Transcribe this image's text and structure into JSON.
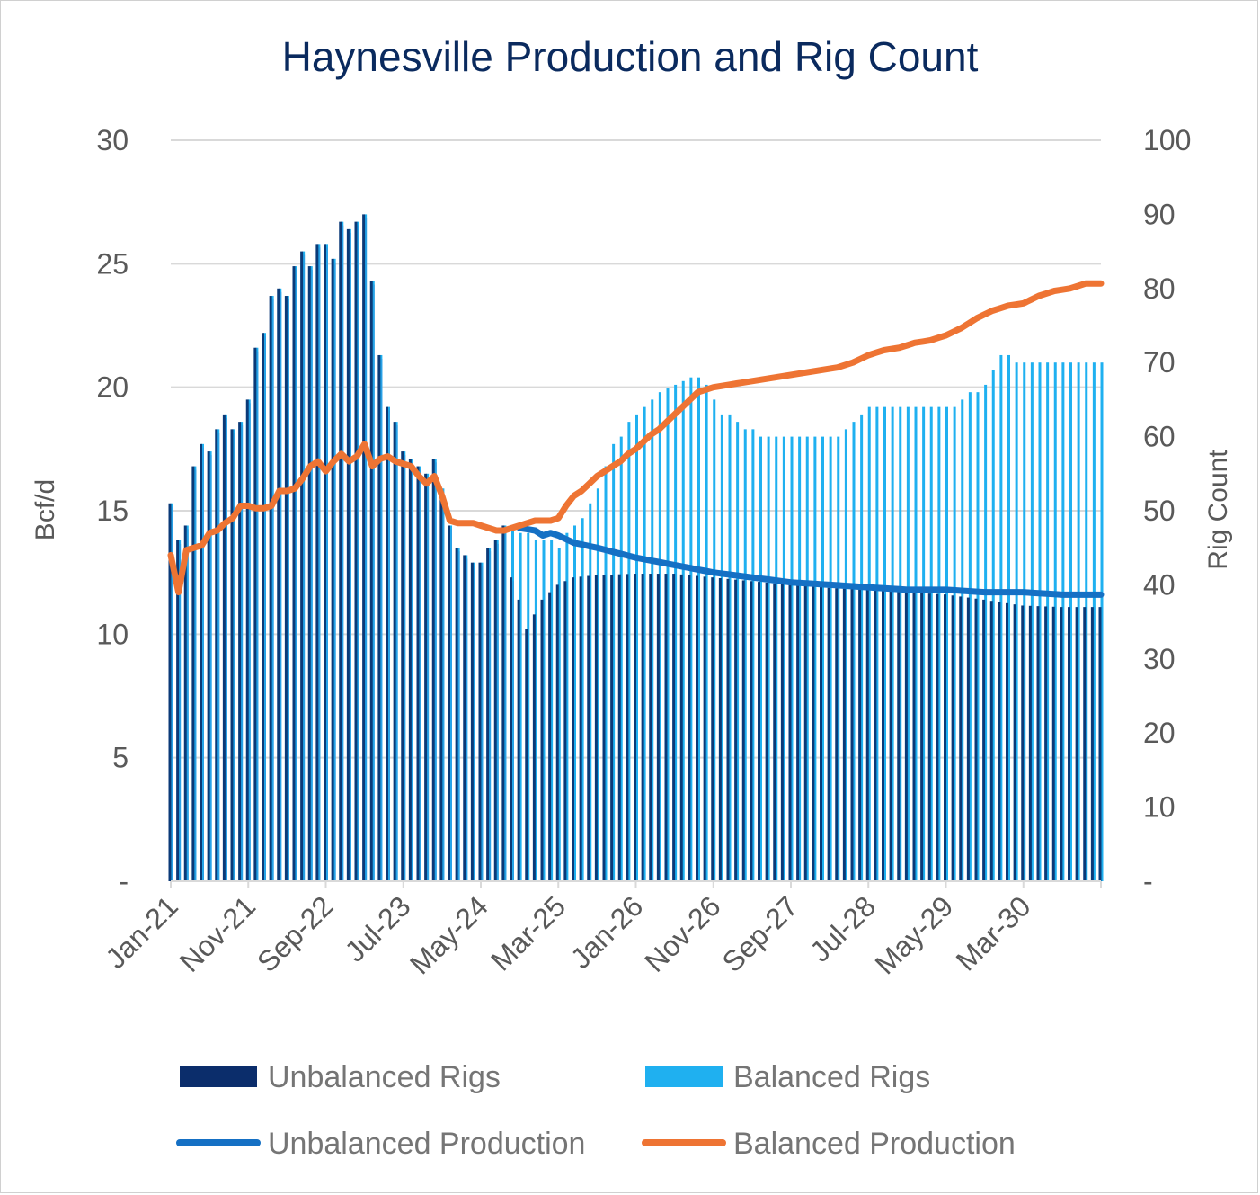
{
  "chart_data": {
    "type": "bar+line",
    "title": "Haynesville Production and Rig Count",
    "y_left_label": "Bcf/d",
    "y_right_label": "Rig Count",
    "y_left_ticks": [
      "-",
      "5",
      "10",
      "15",
      "20",
      "25",
      "30"
    ],
    "y_left_range": [
      0,
      30
    ],
    "y_right_ticks": [
      "-",
      "10",
      "20",
      "30",
      "40",
      "50",
      "60",
      "70",
      "80",
      "90",
      "100"
    ],
    "y_right_range": [
      0,
      100
    ],
    "x_tick_labels": [
      "Jan-21",
      "Nov-21",
      "Sep-22",
      "Jul-23",
      "May-24",
      "Mar-25",
      "Jan-26",
      "Nov-26",
      "Sep-27",
      "Jul-28",
      "May-29",
      "Mar-30"
    ],
    "x_start": "2021-01",
    "months": 121,
    "legend": [
      {
        "name": "Unbalanced Rigs",
        "color": "#0b2d6b",
        "kind": "bar"
      },
      {
        "name": "Balanced Rigs",
        "color": "#1fb0f0",
        "kind": "bar"
      },
      {
        "name": "Unbalanced Production",
        "color": "#1570c4",
        "kind": "line"
      },
      {
        "name": "Balanced Production",
        "color": "#ee7433",
        "kind": "line"
      }
    ],
    "grid": true,
    "legend_position": "bottom",
    "rig_anchors_unbalanced": [
      [
        0,
        51
      ],
      [
        1,
        46
      ],
      [
        2,
        48
      ],
      [
        3,
        56
      ],
      [
        4,
        59
      ],
      [
        5,
        58
      ],
      [
        6,
        61
      ],
      [
        7,
        63
      ],
      [
        8,
        61
      ],
      [
        9,
        62
      ],
      [
        10,
        65
      ],
      [
        11,
        72
      ],
      [
        12,
        74
      ],
      [
        13,
        79
      ],
      [
        14,
        80
      ],
      [
        15,
        79
      ],
      [
        16,
        83
      ],
      [
        17,
        85
      ],
      [
        18,
        83
      ],
      [
        19,
        86
      ],
      [
        20,
        86
      ],
      [
        21,
        84
      ],
      [
        22,
        89
      ],
      [
        23,
        88
      ],
      [
        24,
        89
      ],
      [
        25,
        90
      ],
      [
        26,
        81
      ],
      [
        27,
        71
      ],
      [
        28,
        64
      ],
      [
        29,
        62
      ],
      [
        30,
        58
      ],
      [
        31,
        57
      ],
      [
        32,
        56
      ],
      [
        33,
        55
      ],
      [
        34,
        57
      ],
      [
        35,
        53
      ],
      [
        36,
        48
      ],
      [
        37,
        45
      ],
      [
        38,
        44
      ],
      [
        39,
        43
      ],
      [
        40,
        43
      ],
      [
        41,
        45
      ],
      [
        42,
        46
      ],
      [
        43,
        48
      ],
      [
        44,
        41
      ],
      [
        45,
        38
      ],
      [
        46,
        34
      ],
      [
        47,
        36
      ],
      [
        48,
        38
      ],
      [
        49,
        39
      ],
      [
        50,
        40
      ],
      [
        51,
        40.5
      ],
      [
        52,
        41
      ],
      [
        55,
        41.3
      ],
      [
        60,
        41.5
      ],
      [
        65,
        41.5
      ],
      [
        70,
        41
      ],
      [
        75,
        40.5
      ],
      [
        80,
        40
      ],
      [
        85,
        39.6
      ],
      [
        90,
        39.3
      ],
      [
        95,
        39
      ],
      [
        100,
        38.7
      ],
      [
        105,
        38
      ],
      [
        110,
        37.2
      ],
      [
        115,
        37
      ],
      [
        120,
        37
      ]
    ],
    "rig_anchors_balanced": [
      [
        0,
        51
      ],
      [
        1,
        46
      ],
      [
        2,
        48
      ],
      [
        3,
        56
      ],
      [
        4,
        59
      ],
      [
        5,
        58
      ],
      [
        6,
        61
      ],
      [
        7,
        63
      ],
      [
        8,
        61
      ],
      [
        9,
        62
      ],
      [
        10,
        65
      ],
      [
        11,
        72
      ],
      [
        12,
        74
      ],
      [
        13,
        79
      ],
      [
        14,
        80
      ],
      [
        15,
        79
      ],
      [
        16,
        83
      ],
      [
        17,
        85
      ],
      [
        18,
        83
      ],
      [
        19,
        86
      ],
      [
        20,
        86
      ],
      [
        21,
        84
      ],
      [
        22,
        89
      ],
      [
        23,
        88
      ],
      [
        24,
        89
      ],
      [
        25,
        90
      ],
      [
        26,
        81
      ],
      [
        27,
        71
      ],
      [
        28,
        64
      ],
      [
        29,
        62
      ],
      [
        30,
        58
      ],
      [
        31,
        57
      ],
      [
        32,
        56
      ],
      [
        33,
        55
      ],
      [
        34,
        57
      ],
      [
        35,
        53
      ],
      [
        36,
        48
      ],
      [
        37,
        45
      ],
      [
        38,
        44
      ],
      [
        39,
        43
      ],
      [
        40,
        43
      ],
      [
        41,
        45
      ],
      [
        42,
        46
      ],
      [
        43,
        48
      ],
      [
        44,
        47.5
      ],
      [
        45,
        47
      ],
      [
        46,
        47
      ],
      [
        47,
        46
      ],
      [
        48,
        46
      ],
      [
        49,
        46
      ],
      [
        50,
        45
      ],
      [
        51,
        47
      ],
      [
        52,
        48
      ],
      [
        53,
        49
      ],
      [
        54,
        51
      ],
      [
        55,
        53
      ],
      [
        56,
        56
      ],
      [
        57,
        59
      ],
      [
        58,
        60
      ],
      [
        59,
        62
      ],
      [
        60,
        63
      ],
      [
        61,
        64
      ],
      [
        62,
        65
      ],
      [
        63,
        66
      ],
      [
        64,
        66.5
      ],
      [
        65,
        67
      ],
      [
        66,
        67.5
      ],
      [
        67,
        68
      ],
      [
        68,
        68
      ],
      [
        69,
        67
      ],
      [
        70,
        65
      ],
      [
        71,
        63
      ],
      [
        72,
        63
      ],
      [
        73,
        62
      ],
      [
        74,
        61
      ],
      [
        75,
        61
      ],
      [
        76,
        60
      ],
      [
        77,
        60
      ],
      [
        78,
        60
      ],
      [
        79,
        60
      ],
      [
        80,
        60
      ],
      [
        81,
        60
      ],
      [
        82,
        60
      ],
      [
        83,
        60
      ],
      [
        84,
        60
      ],
      [
        85,
        60
      ],
      [
        86,
        60
      ],
      [
        87,
        61
      ],
      [
        88,
        62
      ],
      [
        89,
        63
      ],
      [
        90,
        64
      ],
      [
        91,
        64
      ],
      [
        92,
        64
      ],
      [
        93,
        64
      ],
      [
        94,
        64
      ],
      [
        95,
        64
      ],
      [
        96,
        64
      ],
      [
        97,
        64
      ],
      [
        98,
        64
      ],
      [
        99,
        64
      ],
      [
        100,
        64
      ],
      [
        101,
        64
      ],
      [
        102,
        65
      ],
      [
        103,
        66
      ],
      [
        104,
        66
      ],
      [
        105,
        67
      ],
      [
        106,
        69
      ],
      [
        107,
        71
      ],
      [
        108,
        71
      ],
      [
        109,
        70
      ],
      [
        110,
        70
      ],
      [
        111,
        70
      ],
      [
        112,
        70
      ],
      [
        113,
        70
      ],
      [
        114,
        70
      ],
      [
        115,
        70
      ],
      [
        116,
        70
      ],
      [
        117,
        70
      ],
      [
        118,
        70
      ],
      [
        119,
        70
      ],
      [
        120,
        70
      ]
    ],
    "prod_anchors_unbalanced": [
      [
        45,
        14.3
      ],
      [
        47,
        14.2
      ],
      [
        48,
        14.0
      ],
      [
        49,
        14.1
      ],
      [
        50,
        14.0
      ],
      [
        52,
        13.7
      ],
      [
        55,
        13.5
      ],
      [
        60,
        13.1
      ],
      [
        65,
        12.8
      ],
      [
        70,
        12.5
      ],
      [
        75,
        12.3
      ],
      [
        80,
        12.1
      ],
      [
        85,
        12.0
      ],
      [
        90,
        11.9
      ],
      [
        95,
        11.8
      ],
      [
        100,
        11.8
      ],
      [
        105,
        11.7
      ],
      [
        110,
        11.7
      ],
      [
        115,
        11.6
      ],
      [
        120,
        11.6
      ]
    ],
    "prod_anchors_balanced": [
      [
        0,
        13.2
      ],
      [
        1,
        11.7
      ],
      [
        2,
        13.4
      ],
      [
        3,
        13.5
      ],
      [
        4,
        13.6
      ],
      [
        5,
        14.1
      ],
      [
        6,
        14.2
      ],
      [
        7,
        14.5
      ],
      [
        8,
        14.7
      ],
      [
        9,
        15.2
      ],
      [
        10,
        15.2
      ],
      [
        11,
        15.1
      ],
      [
        12,
        15.1
      ],
      [
        13,
        15.2
      ],
      [
        14,
        15.8
      ],
      [
        15,
        15.8
      ],
      [
        16,
        15.9
      ],
      [
        17,
        16.3
      ],
      [
        18,
        16.8
      ],
      [
        19,
        17.0
      ],
      [
        20,
        16.6
      ],
      [
        21,
        17.0
      ],
      [
        22,
        17.3
      ],
      [
        23,
        17.0
      ],
      [
        24,
        17.2
      ],
      [
        25,
        17.7
      ],
      [
        26,
        16.8
      ],
      [
        27,
        17.1
      ],
      [
        28,
        17.2
      ],
      [
        29,
        17.0
      ],
      [
        30,
        16.9
      ],
      [
        31,
        16.8
      ],
      [
        32,
        16.4
      ],
      [
        33,
        16.1
      ],
      [
        34,
        16.4
      ],
      [
        35,
        15.6
      ],
      [
        36,
        14.6
      ],
      [
        37,
        14.5
      ],
      [
        38,
        14.5
      ],
      [
        39,
        14.5
      ],
      [
        40,
        14.4
      ],
      [
        41,
        14.3
      ],
      [
        42,
        14.2
      ],
      [
        43,
        14.2
      ],
      [
        44,
        14.3
      ],
      [
        45,
        14.4
      ],
      [
        46,
        14.5
      ],
      [
        47,
        14.6
      ],
      [
        48,
        14.6
      ],
      [
        49,
        14.6
      ],
      [
        50,
        14.7
      ],
      [
        51,
        15.2
      ],
      [
        52,
        15.6
      ],
      [
        53,
        15.8
      ],
      [
        54,
        16.1
      ],
      [
        55,
        16.4
      ],
      [
        56,
        16.6
      ],
      [
        57,
        16.8
      ],
      [
        58,
        17.0
      ],
      [
        59,
        17.3
      ],
      [
        60,
        17.5
      ],
      [
        61,
        17.8
      ],
      [
        62,
        18.1
      ],
      [
        63,
        18.3
      ],
      [
        64,
        18.6
      ],
      [
        65,
        18.9
      ],
      [
        66,
        19.2
      ],
      [
        67,
        19.5
      ],
      [
        68,
        19.8
      ],
      [
        69,
        19.9
      ],
      [
        70,
        20.0
      ],
      [
        72,
        20.1
      ],
      [
        74,
        20.2
      ],
      [
        76,
        20.3
      ],
      [
        78,
        20.4
      ],
      [
        80,
        20.5
      ],
      [
        82,
        20.6
      ],
      [
        84,
        20.7
      ],
      [
        86,
        20.8
      ],
      [
        88,
        21.0
      ],
      [
        90,
        21.3
      ],
      [
        92,
        21.5
      ],
      [
        94,
        21.6
      ],
      [
        96,
        21.8
      ],
      [
        98,
        21.9
      ],
      [
        100,
        22.1
      ],
      [
        102,
        22.4
      ],
      [
        104,
        22.8
      ],
      [
        106,
        23.1
      ],
      [
        108,
        23.3
      ],
      [
        110,
        23.4
      ],
      [
        112,
        23.7
      ],
      [
        114,
        23.9
      ],
      [
        116,
        24.0
      ],
      [
        118,
        24.2
      ],
      [
        120,
        24.2
      ]
    ]
  }
}
